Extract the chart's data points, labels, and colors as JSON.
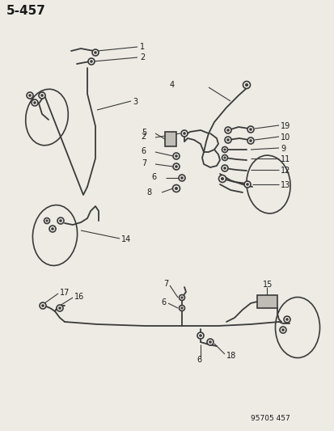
{
  "title": "5-457",
  "watermark": "95705 457",
  "bg_color": "#eeebe5",
  "line_color": "#3a3a3a",
  "text_color": "#1a1a1a",
  "fig_width": 4.14,
  "fig_height": 5.33,
  "dpi": 100
}
